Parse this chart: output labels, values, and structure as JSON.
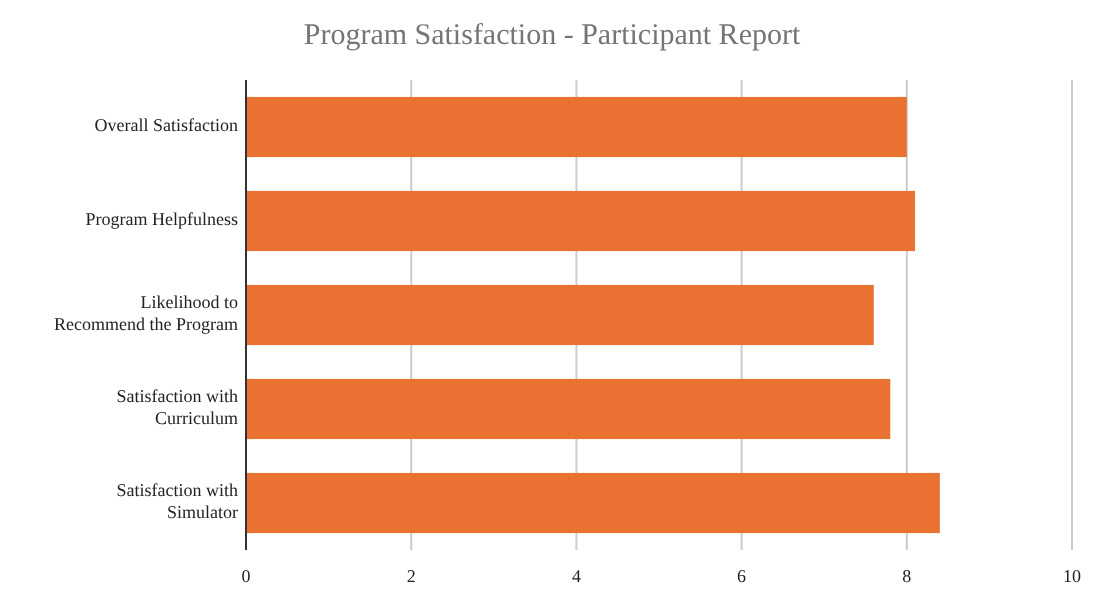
{
  "chart_data": {
    "type": "bar",
    "orientation": "horizontal",
    "title": "Program Satisfaction - Participant Report",
    "categories": [
      "Overall Satisfaction",
      "Program Helpfulness",
      "Likelihood to Recommend the Program",
      "Satisfaction with Curriculum",
      "Satisfaction with Simulator"
    ],
    "values": [
      8.0,
      8.1,
      7.6,
      7.8,
      8.4
    ],
    "color": "#e97132",
    "xlim": [
      0,
      10
    ],
    "xticks": [
      0,
      2,
      4,
      6,
      8,
      10
    ],
    "grid": "x"
  }
}
